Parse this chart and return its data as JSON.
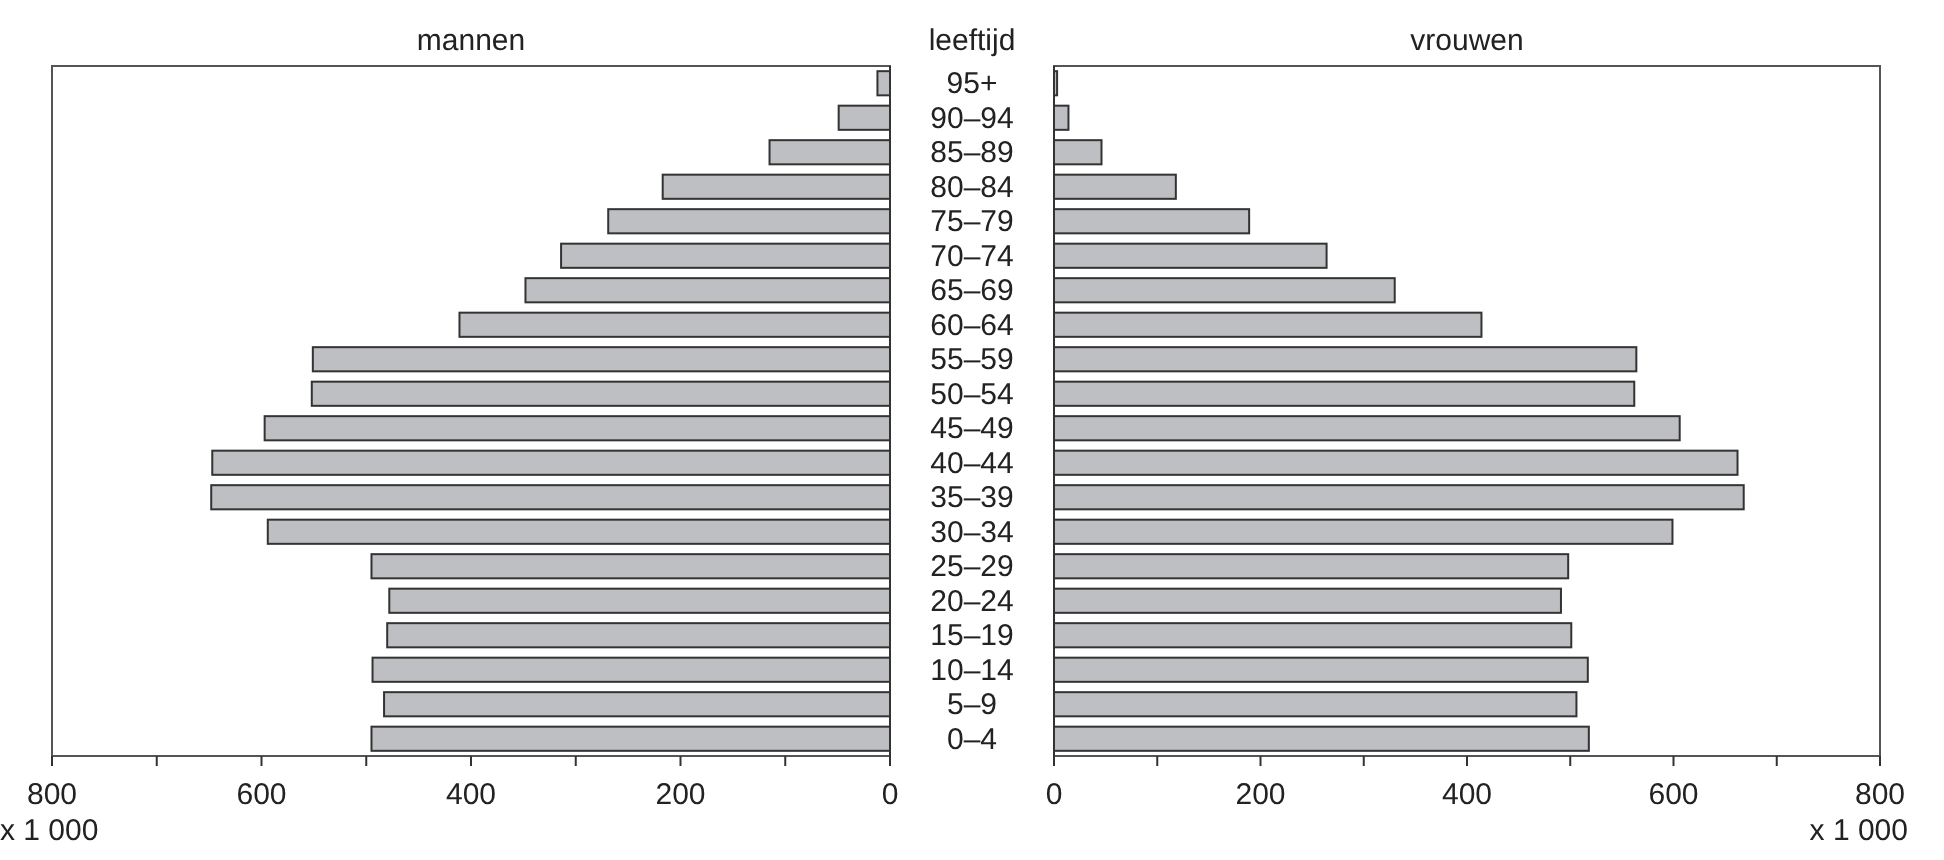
{
  "chart_data": [
    {
      "type": "bar",
      "orientation": "horizontal",
      "title": "mannen",
      "xlabel": "x 1 000",
      "tick_labels": "x",
      "categories": [
        null,
        null,
        null,
        null,
        null,
        null,
        null,
        null,
        null,
        null,
        null,
        null,
        null,
        null,
        null,
        null,
        null,
        null,
        null,
        null
      ],
      "series": [
        {
          "color": "#bebfc3",
          "values": [
            12,
            49,
            115,
            217,
            269,
            314,
            348,
            411,
            551,
            552,
            597,
            647,
            648,
            594,
            495,
            478,
            480,
            494,
            483,
            495
          ]
        }
      ],
      "xlim": [
        800,
        0
      ],
      "xticks": [
        800,
        {
          "value": 700,
          "label": null
        },
        600,
        {
          "value": 500,
          "label": null
        },
        400,
        {
          "value": 300,
          "label": null
        },
        200,
        {
          "value": 100,
          "label": null
        },
        0
      ]
    },
    {
      "type": "bar",
      "orientation": "horizontal",
      "title": "vrouwen",
      "ylabel": "leeftijd",
      "xlabel": "x 1 000",
      "categories": [
        "95+",
        "90–94",
        "85–89",
        "80–84",
        "75–79",
        "70–74",
        "65–69",
        "60–64",
        "55–59",
        "50–54",
        "45–49",
        "40–44",
        "35–39",
        "30–34",
        "25–29",
        "20–24",
        "15–19",
        "10–14",
        "5–9",
        "0–4"
      ],
      "series": [
        {
          "color": "#bebfc3",
          "values": [
            3,
            14,
            46,
            118,
            189,
            264,
            330,
            414,
            564,
            562,
            606,
            662,
            668,
            599,
            498,
            491,
            501,
            517,
            506,
            518
          ]
        }
      ],
      "xlim": [
        0,
        800
      ],
      "xticks": [
        0,
        {
          "value": 100,
          "label": null
        },
        200,
        {
          "value": 300,
          "label": null
        },
        400,
        {
          "value": 500,
          "label": null
        },
        600,
        {
          "value": 700,
          "label": null
        },
        800
      ]
    }
  ]
}
